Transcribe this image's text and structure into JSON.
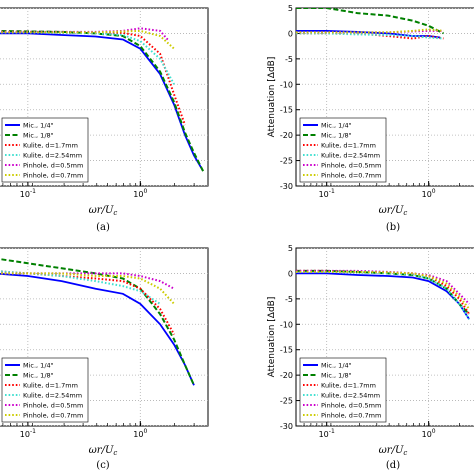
{
  "chart_data": [
    {
      "panel": "(a)",
      "type": "line",
      "xscale": "log",
      "xlabel": "ωr/U_c",
      "ylabel": "",
      "ylim": [
        -30,
        5
      ],
      "grid": true,
      "legend_placement": "lower-left",
      "series": [
        {
          "name": "Mic., 1/4\"",
          "color": "#0000ff",
          "dash": "solid",
          "x": [
            0.05,
            0.1,
            0.2,
            0.4,
            0.7,
            1.0,
            1.5,
            2.0,
            2.5,
            3.0,
            3.6
          ],
          "y": [
            0,
            0,
            -0.3,
            -0.6,
            -1.2,
            -3,
            -8,
            -14,
            -20,
            -24,
            -27
          ]
        },
        {
          "name": "Mic., 1/8\"",
          "color": "#008000",
          "dash": "dashed",
          "x": [
            0.05,
            0.1,
            0.2,
            0.4,
            0.7,
            1.0,
            1.5,
            2.0,
            2.5,
            3.0,
            3.7
          ],
          "y": [
            0.5,
            0.4,
            0.3,
            0,
            -0.5,
            -2.5,
            -7.5,
            -13.5,
            -19.5,
            -23.5,
            -27.5
          ]
        },
        {
          "name": "Kulite, d=1.7mm",
          "color": "#ff0000",
          "dash": "dotted",
          "x": [
            0.05,
            0.1,
            0.2,
            0.4,
            0.7,
            1.0,
            1.5,
            2.0,
            2.5
          ],
          "y": [
            0.3,
            0.3,
            0.2,
            0.1,
            0.1,
            -0.5,
            -4,
            -12,
            -18
          ]
        },
        {
          "name": "Kulite, d=2.54mm",
          "color": "#40e0d0",
          "dash": "dotted",
          "x": [
            0.05,
            0.1,
            0.2,
            0.4,
            0.7,
            1.0,
            1.5,
            2.0
          ],
          "y": [
            0.2,
            0.2,
            0.1,
            0,
            -0.3,
            -1.5,
            -5,
            -10
          ]
        },
        {
          "name": "Pinhole, d=0.5mm",
          "color": "#cc00cc",
          "dash": "dotted",
          "x": [
            0.05,
            0.1,
            0.2,
            0.4,
            0.7,
            1.0,
            1.5,
            1.8
          ],
          "y": [
            0.3,
            0.3,
            0.3,
            0.3,
            0.5,
            1,
            0.5,
            -1.5
          ]
        },
        {
          "name": "Pinhole, d=0.7mm",
          "color": "#cccc00",
          "dash": "dotted",
          "x": [
            0.05,
            0.1,
            0.2,
            0.4,
            0.7,
            1.0,
            1.5,
            2.0
          ],
          "y": [
            0.2,
            0.2,
            0.2,
            0.2,
            0.4,
            0.5,
            -0.5,
            -3
          ]
        }
      ]
    },
    {
      "panel": "(b)",
      "type": "line",
      "xscale": "log",
      "xlabel": "ωr/U_c",
      "ylabel": "Attenuation [ΔdB]",
      "ylim": [
        -30,
        5
      ],
      "grid": true,
      "legend_placement": "lower-left",
      "series": [
        {
          "name": "Mic., 1/4\"",
          "color": "#0000ff",
          "dash": "solid",
          "x": [
            0.05,
            0.1,
            0.2,
            0.4,
            0.7,
            1.0,
            1.3
          ],
          "y": [
            0.5,
            0.5,
            0.3,
            0,
            -0.5,
            -0.5,
            -0.8
          ]
        },
        {
          "name": "Mic., 1/8\"",
          "color": "#008000",
          "dash": "dashed",
          "x": [
            0.05,
            0.1,
            0.2,
            0.4,
            0.7,
            1.0,
            1.4
          ],
          "y": [
            5,
            5,
            4,
            3.5,
            2.5,
            1.5,
            0
          ]
        },
        {
          "name": "Kulite, d=1.7mm",
          "color": "#ff0000",
          "dash": "dotted",
          "x": [
            0.05,
            0.1,
            0.2,
            0.4,
            0.7,
            1.0,
            1.4
          ],
          "y": [
            0,
            0,
            0,
            -0.5,
            -1,
            -0.5,
            -1
          ]
        },
        {
          "name": "Kulite, d=2.54mm",
          "color": "#40e0d0",
          "dash": "dotted",
          "x": [
            0.05,
            0.1,
            0.2,
            0.4,
            0.7,
            1.0,
            1.4
          ],
          "y": [
            0,
            0,
            -0.2,
            -0.3,
            -0.5,
            -0.8,
            -1
          ]
        },
        {
          "name": "Pinhole, d=0.5mm",
          "color": "#cc00cc",
          "dash": "dotted",
          "x": [
            0.05,
            0.1,
            0.2,
            0.4,
            0.7,
            1.0,
            1.4
          ],
          "y": [
            0.2,
            0.2,
            0.2,
            0.2,
            0.4,
            0.5,
            0.5
          ]
        },
        {
          "name": "Pinhole, d=0.7mm",
          "color": "#cccc00",
          "dash": "dotted",
          "x": [
            0.05,
            0.1,
            0.2,
            0.4,
            0.7,
            1.0,
            1.4
          ],
          "y": [
            0.2,
            0.2,
            0.2,
            0.2,
            0.5,
            0.8,
            0.5
          ]
        }
      ]
    },
    {
      "panel": "(c)",
      "type": "line",
      "xscale": "log",
      "xlabel": "ωr/U_c",
      "ylabel": "",
      "ylim": [
        -30,
        5
      ],
      "grid": true,
      "legend_placement": "lower-left",
      "series": [
        {
          "name": "Mic., 1/4\"",
          "color": "#0000ff",
          "dash": "solid",
          "x": [
            0.05,
            0.1,
            0.2,
            0.4,
            0.7,
            1.0,
            1.5,
            2.0,
            2.5,
            3.0
          ],
          "y": [
            0,
            -0.5,
            -1.5,
            -3,
            -4,
            -6,
            -10,
            -14,
            -18,
            -22
          ]
        },
        {
          "name": "Mic., 1/8\"",
          "color": "#008000",
          "dash": "dashed",
          "x": [
            0.05,
            0.1,
            0.2,
            0.4,
            0.7,
            1.0,
            1.5,
            2.0,
            2.5,
            3.0
          ],
          "y": [
            3,
            2,
            1,
            0,
            -1,
            -3,
            -8,
            -13,
            -18,
            -22
          ]
        },
        {
          "name": "Kulite, d=1.7mm",
          "color": "#ff0000",
          "dash": "dotted",
          "x": [
            0.05,
            0.1,
            0.2,
            0.4,
            0.7,
            1.0,
            1.5,
            2.0
          ],
          "y": [
            0.5,
            0,
            -0.5,
            -1,
            -1.5,
            -3,
            -7,
            -12
          ]
        },
        {
          "name": "Kulite, d=2.54mm",
          "color": "#40e0d0",
          "dash": "dotted",
          "x": [
            0.05,
            0.1,
            0.2,
            0.4,
            0.7,
            1.0,
            1.5
          ],
          "y": [
            0.5,
            0,
            -0.5,
            -1.5,
            -2.5,
            -3.5,
            -6
          ]
        },
        {
          "name": "Pinhole, d=0.5mm",
          "color": "#cc00cc",
          "dash": "dotted",
          "x": [
            0.05,
            0.1,
            0.2,
            0.4,
            0.7,
            1.0,
            1.5,
            2.0
          ],
          "y": [
            0,
            0,
            0,
            0,
            0,
            -0.5,
            -1.5,
            -3
          ]
        },
        {
          "name": "Pinhole, d=0.7mm",
          "color": "#cccc00",
          "dash": "dotted",
          "x": [
            0.05,
            0.1,
            0.2,
            0.4,
            0.7,
            1.0,
            1.5,
            2.0
          ],
          "y": [
            0,
            0,
            0,
            -0.5,
            -0.5,
            -1,
            -3,
            -6
          ]
        }
      ]
    },
    {
      "panel": "(d)",
      "type": "line",
      "xscale": "log",
      "xlabel": "ωr/U_c",
      "ylabel": "Attenuation [ΔdB]",
      "ylim": [
        -30,
        5
      ],
      "grid": true,
      "legend_placement": "lower-left",
      "series": [
        {
          "name": "Mic., 1/4\"",
          "color": "#0000ff",
          "dash": "solid",
          "x": [
            0.05,
            0.1,
            0.2,
            0.4,
            0.7,
            1.0,
            1.5,
            2.0,
            2.5
          ],
          "y": [
            0,
            0,
            -0.3,
            -0.5,
            -0.8,
            -1.5,
            -3.5,
            -6,
            -9
          ]
        },
        {
          "name": "Mic., 1/8\"",
          "color": "#008000",
          "dash": "dashed",
          "x": [
            0.05,
            0.1,
            0.2,
            0.4,
            0.7,
            1.0,
            1.5,
            2.0,
            2.5
          ],
          "y": [
            0.5,
            0.5,
            0.3,
            0,
            -0.3,
            -1,
            -3,
            -6,
            -8
          ]
        },
        {
          "name": "Kulite, d=1.7mm",
          "color": "#ff0000",
          "dash": "dotted",
          "x": [
            0.05,
            0.1,
            0.2,
            0.4,
            0.7,
            1.0,
            1.5,
            2.0,
            2.5
          ],
          "y": [
            0.5,
            0.5,
            0.3,
            0.2,
            0,
            -0.5,
            -2.5,
            -5,
            -8
          ]
        },
        {
          "name": "Kulite, d=2.54mm",
          "color": "#40e0d0",
          "dash": "dotted",
          "x": [
            0.05,
            0.1,
            0.2,
            0.4,
            0.7,
            1.0,
            1.5,
            2.0,
            2.5
          ],
          "y": [
            0.3,
            0.3,
            0.2,
            0,
            -0.2,
            -1,
            -3,
            -6,
            -9
          ]
        },
        {
          "name": "Pinhole, d=0.5mm",
          "color": "#cc00cc",
          "dash": "dotted",
          "x": [
            0.05,
            0.1,
            0.2,
            0.4,
            0.7,
            1.0,
            1.5,
            2.0,
            2.5
          ],
          "y": [
            0.5,
            0.5,
            0.5,
            0.3,
            0,
            -0.3,
            -1.5,
            -4,
            -6
          ]
        },
        {
          "name": "Pinhole, d=0.7mm",
          "color": "#cccc00",
          "dash": "dotted",
          "x": [
            0.05,
            0.1,
            0.2,
            0.4,
            0.7,
            1.0,
            1.5,
            2.0,
            2.5
          ],
          "y": [
            0.3,
            0.3,
            0.3,
            0.2,
            0,
            -0.5,
            -2,
            -4.5,
            -7
          ]
        }
      ]
    }
  ],
  "axes": {
    "y_ticks": [
      "5",
      "0",
      "-5",
      "-10",
      "-15",
      "-20",
      "-25",
      "-30"
    ],
    "x_ticks": [
      "10",
      "10"
    ],
    "x_tick_exponents": [
      "-1",
      "0"
    ],
    "xlabel_parts": {
      "omega": "ωr",
      "slash": "/",
      "u": "U",
      "sub": "c"
    }
  }
}
